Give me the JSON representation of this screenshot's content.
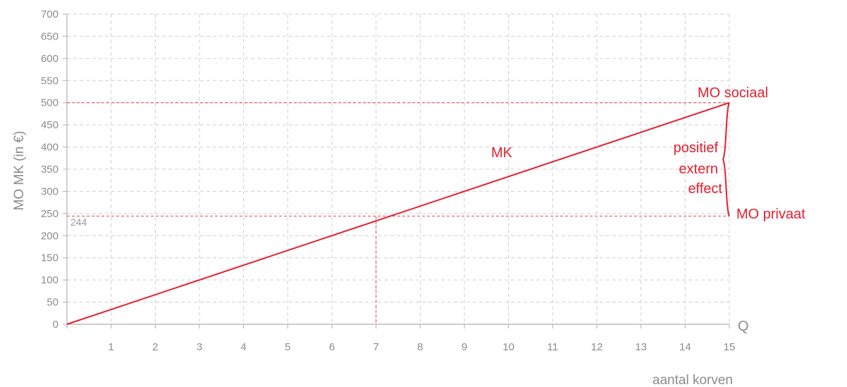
{
  "chart_data": {
    "type": "line",
    "ylabel": "MO MK (in €)",
    "xlabel": "aantal korven",
    "x_axis_end_label": "Q",
    "xlim": [
      0,
      15
    ],
    "ylim": [
      0,
      700
    ],
    "x_ticks": [
      1,
      2,
      3,
      4,
      5,
      6,
      7,
      8,
      9,
      10,
      11,
      12,
      13,
      14,
      15
    ],
    "y_ticks": [
      0,
      50,
      100,
      150,
      200,
      250,
      300,
      350,
      400,
      450,
      500,
      550,
      600,
      650,
      700
    ],
    "grid": true,
    "series": [
      {
        "name": "MK",
        "x": [
          0,
          15
        ],
        "y": [
          0,
          500
        ]
      }
    ],
    "reference_lines": [
      {
        "axis": "y",
        "value": 500
      },
      {
        "axis": "y",
        "value": 244,
        "label": "244"
      },
      {
        "axis": "x",
        "value": 7,
        "y_top": 244
      }
    ],
    "annotations": {
      "mk": "MK",
      "mo_sociaal": "MO sociaal",
      "mo_privaat": "MO privaat",
      "external_effect": [
        "positief",
        "extern",
        "effect"
      ]
    },
    "colors": {
      "series": "#e3202f",
      "grid": "#cfcfcf",
      "text": "#8c8c8c"
    }
  }
}
